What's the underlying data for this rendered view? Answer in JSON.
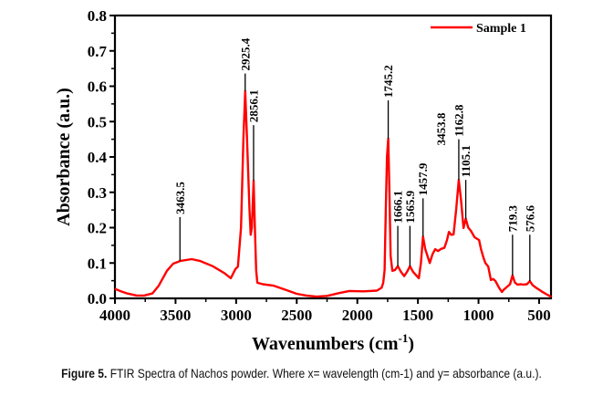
{
  "chart_data": {
    "type": "line",
    "title": "",
    "xlabel": "Wavenumbers (cm",
    "xlabel_sup": "-1",
    "xlabel_close": ")",
    "ylabel": "Absorbance (a.u.)",
    "xlim": [
      4000,
      400
    ],
    "ylim": [
      0.0,
      0.8
    ],
    "x_ticks": [
      4000,
      3500,
      3000,
      2500,
      2000,
      1500,
      1000,
      500
    ],
    "x_tick_labels": [
      "4000",
      "3500",
      "3000",
      "2500",
      "2000",
      "1500",
      "1000",
      "500"
    ],
    "y_ticks": [
      0.0,
      0.1,
      0.2,
      0.3,
      0.4,
      0.5,
      0.6,
      0.7,
      0.8
    ],
    "y_tick_labels": [
      "0.0",
      "0.1",
      "0.2",
      "0.3",
      "0.4",
      "0.5",
      "0.6",
      "0.7",
      "0.8"
    ],
    "grid": false,
    "legend_position": "top-right",
    "series": [
      {
        "name": "Sample 1",
        "color": "#ff0000",
        "x": [
          4000,
          3950,
          3900,
          3819,
          3760,
          3691,
          3640,
          3571,
          3520,
          3458,
          3367,
          3300,
          3194,
          3100,
          3044,
          3006,
          2985,
          2960,
          2940,
          2925.4,
          2910,
          2890,
          2880,
          2870,
          2856.1,
          2845,
          2835,
          2825,
          2780,
          2690,
          2600,
          2500,
          2420,
          2336,
          2250,
          2150,
          2065,
          1950,
          1839,
          1800,
          1786,
          1775,
          1765,
          1755,
          1745.2,
          1735,
          1725,
          1711,
          1690,
          1666.1,
          1640,
          1613,
          1590,
          1565.9,
          1540,
          1493,
          1475,
          1457.9,
          1440,
          1402,
          1380,
          1357,
          1334,
          1310,
          1282,
          1260,
          1244,
          1225,
          1206,
          1185,
          1162.8,
          1145,
          1124,
          1105.1,
          1085,
          1063,
          1033,
          995,
          980,
          958,
          943,
          920,
          898,
          880,
          860,
          830,
          807,
          790,
          770,
          740,
          719.3,
          700,
          679,
          650,
          634,
          600,
          576.6,
          555,
          529,
          480,
          431,
          400
        ],
        "y": [
          0.027,
          0.02,
          0.014,
          0.008,
          0.008,
          0.014,
          0.035,
          0.078,
          0.098,
          0.106,
          0.111,
          0.106,
          0.091,
          0.072,
          0.057,
          0.083,
          0.09,
          0.2,
          0.45,
          0.586,
          0.45,
          0.25,
          0.18,
          0.2,
          0.333,
          0.2,
          0.08,
          0.044,
          0.04,
          0.036,
          0.025,
          0.013,
          0.008,
          0.005,
          0.007,
          0.015,
          0.021,
          0.02,
          0.022,
          0.03,
          0.044,
          0.08,
          0.25,
          0.4,
          0.452,
          0.3,
          0.12,
          0.078,
          0.08,
          0.091,
          0.075,
          0.063,
          0.075,
          0.091,
          0.075,
          0.057,
          0.1,
          0.175,
          0.14,
          0.1,
          0.125,
          0.139,
          0.134,
          0.14,
          0.143,
          0.165,
          0.188,
          0.18,
          0.181,
          0.25,
          0.335,
          0.28,
          0.199,
          0.225,
          0.2,
          0.191,
          0.173,
          0.165,
          0.14,
          0.114,
          0.1,
          0.09,
          0.052,
          0.055,
          0.049,
          0.03,
          0.018,
          0.025,
          0.031,
          0.04,
          0.065,
          0.045,
          0.039,
          0.04,
          0.039,
          0.04,
          0.049,
          0.038,
          0.031,
          0.02,
          0.01,
          0.004
        ]
      }
    ],
    "annotations": [
      {
        "text": "3463.5",
        "x": 3463.5,
        "y": 0.106,
        "leader": true,
        "label_top_y": 0.23
      },
      {
        "text": "2925.4",
        "x": 2925.4,
        "y": 0.586,
        "leader": true,
        "label_top_y": 0.636
      },
      {
        "text": "2856.1",
        "x": 2856.1,
        "y": 0.333,
        "leader": true,
        "label_top_y": 0.49
      },
      {
        "text": "1745.2",
        "x": 1745.2,
        "y": 0.452,
        "leader": true,
        "label_top_y": 0.56
      },
      {
        "text": "1666.1",
        "x": 1666.1,
        "y": 0.091,
        "leader": true,
        "label_top_y": 0.205
      },
      {
        "text": "1565.9",
        "x": 1565.9,
        "y": 0.091,
        "leader": true,
        "label_top_y": 0.205
      },
      {
        "text": "1457.9",
        "x": 1457.9,
        "y": 0.175,
        "leader": true,
        "label_top_y": 0.283
      },
      {
        "text": "3453.8",
        "x": 1310,
        "y": 0.0,
        "leader": false,
        "label_top_y": 0.425
      },
      {
        "text": "1162.8",
        "x": 1162.8,
        "y": 0.335,
        "leader": true,
        "label_top_y": 0.45
      },
      {
        "text": "1105.1",
        "x": 1105.1,
        "y": 0.225,
        "leader": true,
        "label_top_y": 0.335
      },
      {
        "text": "719.3",
        "x": 719.3,
        "y": 0.065,
        "leader": true,
        "label_top_y": 0.18
      },
      {
        "text": "576.6",
        "x": 576.6,
        "y": 0.049,
        "leader": true,
        "label_top_y": 0.18
      }
    ]
  },
  "caption": {
    "label": "Figure 5.",
    "text": " FTIR Spectra of Nachos powder. Where x= wavelength (cm-1) and y= absorbance (a.u.)."
  }
}
